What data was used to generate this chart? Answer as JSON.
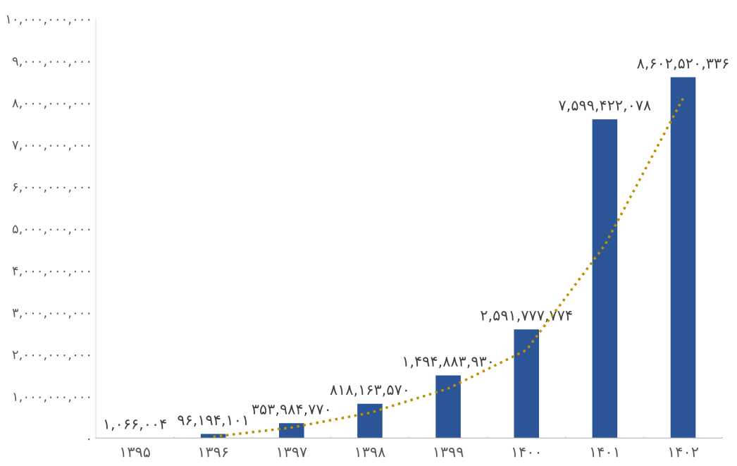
{
  "chart_data": {
    "type": "bar",
    "categories": [
      "۱۳۹۵",
      "۱۳۹۶",
      "۱۳۹۷",
      "۱۳۹۸",
      "۱۳۹۹",
      "۱۴۰۰",
      "۱۴۰۱",
      "۱۴۰۲"
    ],
    "series": [
      {
        "color": "#2b5597",
        "values": [
          1066004,
          96194101,
          353984770,
          818163570,
          1494883930,
          2591777774,
          7599422078,
          8602520336
        ],
        "value_labels": [
          "۱,۰۶۶,۰۰۴",
          "۹۶,۱۹۴,۱۰۱",
          "۳۵۳,۹۸۴,۷۷۰",
          "۸۱۸,۱۶۳,۵۷۰",
          "۱,۴۹۴,۸۸۳,۹۳۰",
          "۲,۵۹۱,۷۷۷,۷۷۴",
          "۷,۵۹۹,۴۲۲,۰۷۸",
          "۸,۶۰۲,۵۲۰,۳۳۶"
        ]
      },
      {
        "type": "line",
        "color": "#bf9000",
        "line_style": "dotted",
        "values": [
          null,
          30000000,
          250000000,
          600000000,
          1180000000,
          2100000000,
          4600000000,
          8100000000
        ]
      }
    ],
    "ylim": [
      0,
      10000000000
    ],
    "yticks": [
      {
        "value": 0,
        "label": "۰"
      },
      {
        "value": 1000000000,
        "label": "۱,۰۰۰,۰۰۰,۰۰۰"
      },
      {
        "value": 2000000000,
        "label": "۲,۰۰۰,۰۰۰,۰۰۰"
      },
      {
        "value": 3000000000,
        "label": "۳,۰۰۰,۰۰۰,۰۰۰"
      },
      {
        "value": 4000000000,
        "label": "۴,۰۰۰,۰۰۰,۰۰۰"
      },
      {
        "value": 5000000000,
        "label": "۵,۰۰۰,۰۰۰,۰۰۰"
      },
      {
        "value": 6000000000,
        "label": "۶,۰۰۰,۰۰۰,۰۰۰"
      },
      {
        "value": 7000000000,
        "label": "۷,۰۰۰,۰۰۰,۰۰۰"
      },
      {
        "value": 8000000000,
        "label": "۸,۰۰۰,۰۰۰,۰۰۰"
      },
      {
        "value": 9000000000,
        "label": "۹,۰۰۰,۰۰۰,۰۰۰"
      },
      {
        "value": 10000000000,
        "label": "۱۰,۰۰۰,۰۰۰,۰۰۰"
      }
    ],
    "grid": false
  }
}
